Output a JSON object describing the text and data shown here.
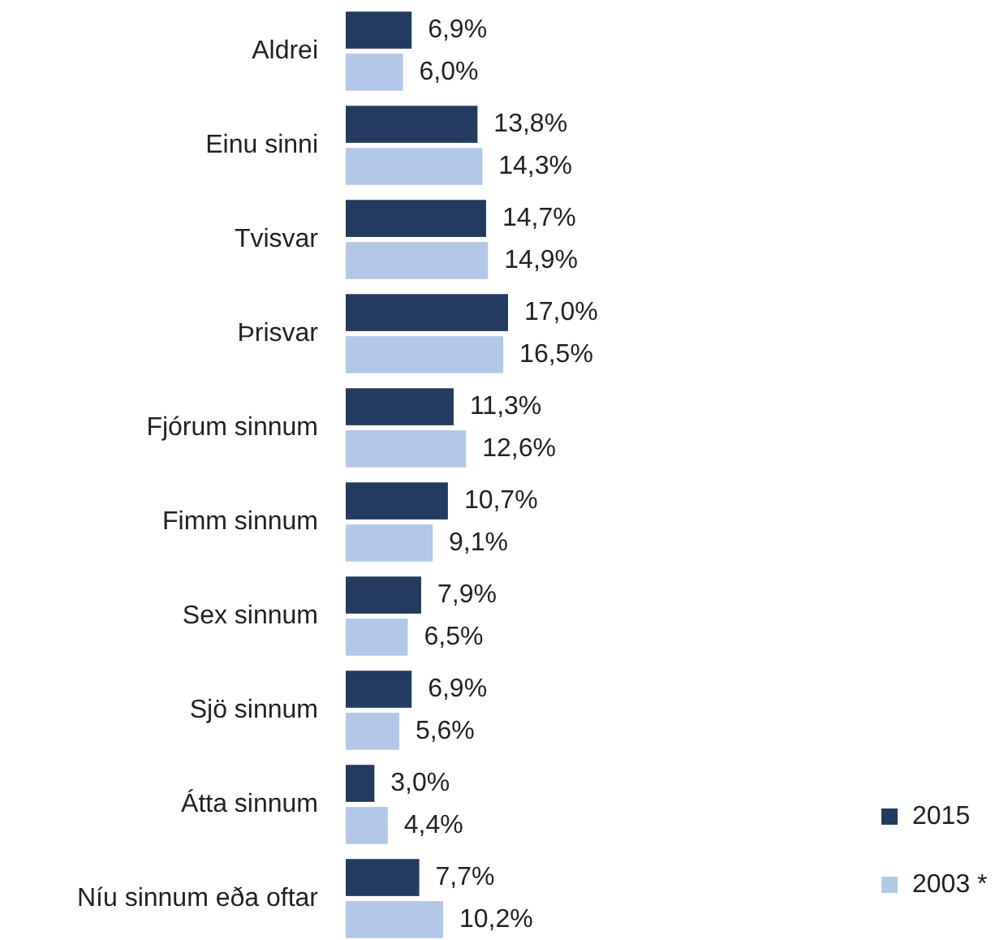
{
  "chart_data": {
    "type": "bar",
    "orientation": "horizontal",
    "categories": [
      "Aldrei",
      "Einu sinni",
      "Tvisvar",
      "Þrisvar",
      "Fjórum sinnum",
      "Fimm sinnum",
      "Sex sinnum",
      "Sjö sinnum",
      "Átta sinnum",
      "Níu sinnum eða oftar"
    ],
    "series": [
      {
        "name": "2015",
        "color": "#243a5e",
        "values": [
          6.9,
          13.8,
          14.7,
          17.0,
          11.3,
          10.7,
          7.9,
          6.9,
          3.0,
          7.7
        ],
        "value_labels": [
          "6,9%",
          "13,8%",
          "14,7%",
          "17,0%",
          "11,3%",
          "10,7%",
          "7,9%",
          "6,9%",
          "3,0%",
          "7,7%"
        ]
      },
      {
        "name": "2003 *",
        "color": "#b4c7e7",
        "values": [
          6.0,
          14.3,
          14.9,
          16.5,
          12.6,
          9.1,
          6.5,
          5.6,
          4.4,
          10.2
        ],
        "value_labels": [
          "6,0%",
          "14,3%",
          "14,9%",
          "16,5%",
          "12,6%",
          "9,1%",
          "6,5%",
          "5,6%",
          "4,4%",
          "10,2%"
        ]
      }
    ],
    "tick_labels": "y",
    "legend": "bottom right"
  }
}
